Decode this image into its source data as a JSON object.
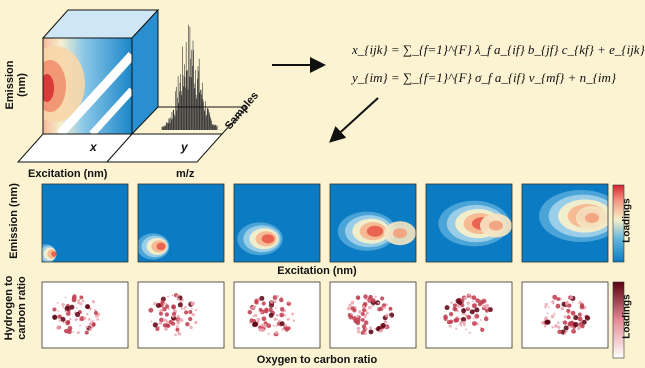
{
  "cube": {
    "emission_label": "Emission (nm)",
    "excitation_label": "Excitation (nm)",
    "x_label": "x",
    "y_label": "y",
    "mz_label": "m/z",
    "samples_label": "Samples"
  },
  "equations": {
    "line1": "x_{ijk} = ∑_{f=1}^{F} λ_f a_{if} b_{jf} c_{kf} + e_{ijk}",
    "line2": "y_{im} = ∑_{f=1}^{F} σ_f a_{if} v_{mf} + n_{im}"
  },
  "eem_row": {
    "ylabel": "Emission (nm)",
    "xlabel": "Excitation (nm)",
    "colorbar_label": "Loadings",
    "panel_count": 6
  },
  "vk_row": {
    "ylabel_line1": "Hydrogen to",
    "ylabel_line2": "carbon ratio",
    "xlabel": "Oxygen to carbon ratio",
    "colorbar_label": "Loadings",
    "panel_count": 6
  },
  "colors": {
    "background": "#fbf3d2",
    "low": "#0b7bc3",
    "mid": "#f6f0c8",
    "high": "#d62430"
  }
}
